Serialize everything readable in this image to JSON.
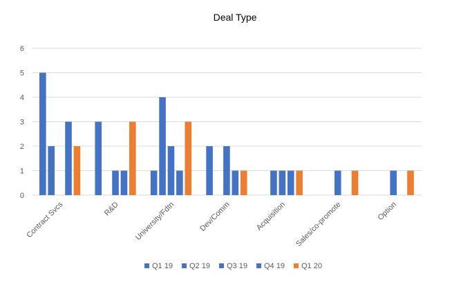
{
  "chart_data": {
    "type": "bar",
    "title": "Deal Type",
    "xlabel": "",
    "ylabel": "",
    "ylim": [
      0,
      6
    ],
    "yticks": [
      0,
      1,
      2,
      3,
      4,
      5,
      6
    ],
    "grid": true,
    "legend": "bottom",
    "categories": [
      "Contract Svcs",
      "R&D",
      "University/Fdtn",
      "Dev/Comm",
      "Acquisition",
      "Sales/co-promote",
      "Option"
    ],
    "series": [
      {
        "name": "Q1 19",
        "color": "#4472C4",
        "values": [
          5,
          3,
          1,
          2,
          0,
          0,
          0
        ]
      },
      {
        "name": "Q2 19",
        "color": "#4472C4",
        "values": [
          2,
          0,
          4,
          0,
          1,
          0,
          0
        ]
      },
      {
        "name": "Q3 19",
        "color": "#4472C4",
        "values": [
          0,
          1,
          2,
          2,
          1,
          1,
          1
        ]
      },
      {
        "name": "Q4 19",
        "color": "#4472C4",
        "values": [
          3,
          1,
          1,
          1,
          1,
          0,
          0
        ]
      },
      {
        "name": "Q1 20",
        "color": "#ED7D31",
        "values": [
          2,
          3,
          3,
          1,
          1,
          1,
          1
        ]
      }
    ]
  }
}
